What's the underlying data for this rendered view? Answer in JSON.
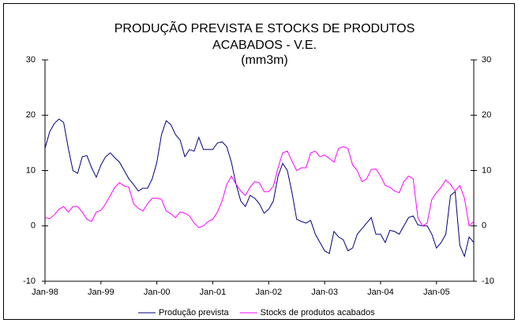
{
  "chart_data": {
    "type": "line",
    "title": "PRODUÇÃO PREVISTA E STOCKS DE PRODUTOS ACABADOS - V.E.",
    "subtitle": "(mm3m)",
    "categories": [
      "Jan-98",
      null,
      null,
      null,
      null,
      null,
      null,
      null,
      null,
      null,
      null,
      null,
      "Jan-99",
      null,
      null,
      null,
      null,
      null,
      null,
      null,
      null,
      null,
      null,
      null,
      "Jan-00",
      null,
      null,
      null,
      null,
      null,
      null,
      null,
      null,
      null,
      null,
      null,
      "Jan-01",
      null,
      null,
      null,
      null,
      null,
      null,
      null,
      null,
      null,
      null,
      null,
      "Jan-02",
      null,
      null,
      null,
      null,
      null,
      null,
      null,
      null,
      null,
      null,
      null,
      "Jan-03",
      null,
      null,
      null,
      null,
      null,
      null,
      null,
      null,
      null,
      null,
      null,
      "Jan-04",
      null,
      null,
      null,
      null,
      null,
      null,
      null,
      null,
      null,
      null,
      null,
      "Jan-05",
      null,
      null,
      null,
      null,
      null,
      null,
      null,
      null
    ],
    "series": [
      {
        "name": "Produção prevista",
        "color": "#000080",
        "values": [
          14,
          17,
          18.5,
          19.3,
          18.7,
          14,
          10,
          9.5,
          12.5,
          12.7,
          10.5,
          8.8,
          11,
          12.5,
          13.2,
          12.3,
          11.5,
          10,
          8.5,
          7.5,
          6.3,
          6.8,
          6.8,
          8.5,
          11.5,
          16.5,
          19,
          18.3,
          16.5,
          15.5,
          12.5,
          13.8,
          13.5,
          16,
          13.8,
          13.8,
          13.8,
          15,
          15.2,
          14.3,
          11.5,
          7.5,
          4.5,
          3.5,
          5.5,
          5,
          4,
          2.3,
          3,
          4.5,
          9,
          11.3,
          10,
          6,
          1.2,
          0.8,
          0.5,
          1,
          -1.5,
          -3,
          -4.5,
          -5,
          -1,
          -2,
          -2.5,
          -4.5,
          -4,
          -1.5,
          -0.5,
          0.5,
          1.5,
          -1.5,
          -1.5,
          -3,
          -0.8,
          -1,
          -1.5,
          0,
          1.5,
          1.8,
          0.2,
          0,
          0,
          -1.5,
          -4,
          -3,
          -1.5,
          5.5,
          6.2,
          -3.5,
          -5.5,
          -2,
          -3
        ]
      },
      {
        "name": "Stocks de produtos acabados",
        "color": "#ff00ff",
        "axis": "y2",
        "values": [
          1.5,
          1.3,
          2,
          3,
          3.5,
          2.5,
          3.5,
          3.5,
          2.5,
          1.2,
          0.8,
          2.5,
          2.8,
          4,
          5.5,
          7,
          7.8,
          7.2,
          7,
          4,
          3.2,
          2.7,
          4,
          5,
          5,
          4.8,
          2.7,
          2.2,
          1.5,
          2.5,
          2.3,
          1.8,
          0.5,
          -0.3,
          0,
          0.8,
          1.2,
          2.5,
          4.5,
          7.5,
          9,
          7.5,
          6.3,
          5.5,
          7,
          8,
          7.8,
          6.2,
          6.2,
          7.2,
          10.5,
          13.2,
          13.5,
          11.7,
          10,
          10.5,
          10.5,
          13.2,
          13.5,
          12.5,
          12.8,
          12.2,
          11.5,
          14,
          14.3,
          14,
          11,
          10,
          8,
          8.5,
          10.2,
          10.3,
          9,
          7.3,
          7,
          6.3,
          6,
          8,
          9,
          8.5,
          1.5,
          0,
          0.5,
          4.8,
          6,
          7,
          8.3,
          7.5,
          6.3,
          7.3,
          5,
          0,
          0.8
        ]
      }
    ],
    "ylim": [
      -10,
      30
    ],
    "yticks": [
      -10,
      0,
      10,
      20,
      30
    ],
    "y2lim": [
      -10,
      30
    ],
    "y2ticks": [
      -10,
      0,
      10,
      20,
      30
    ],
    "legend": "bottom"
  }
}
